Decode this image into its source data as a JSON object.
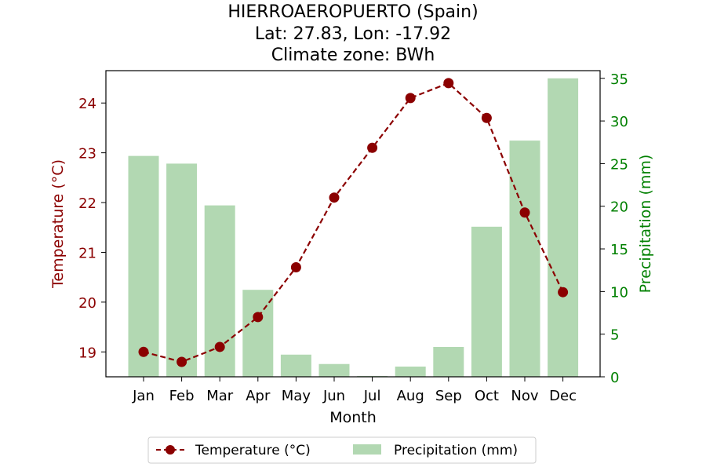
{
  "chart_data": {
    "type": "bar+line",
    "title_lines": [
      "HIERROAEROPUERTO (Spain)",
      "Lat: 27.83, Lon: -17.92",
      "Climate zone: BWh"
    ],
    "xlabel": "Month",
    "ylabel_left": "Temperature (°C)",
    "ylabel_right": "Precipitation (mm)",
    "categories": [
      "Jan",
      "Feb",
      "Mar",
      "Apr",
      "May",
      "Jun",
      "Jul",
      "Aug",
      "Sep",
      "Oct",
      "Nov",
      "Dec"
    ],
    "ylim_left": [
      18.5,
      24.65
    ],
    "ylim_right": [
      0,
      35.9
    ],
    "yticks_left": [
      19,
      20,
      21,
      22,
      23,
      24
    ],
    "yticks_right": [
      0,
      5,
      10,
      15,
      20,
      25,
      30,
      35
    ],
    "series": [
      {
        "name": "Temperature (°C)",
        "kind": "line",
        "axis": "left",
        "color": "#8b0000",
        "values": [
          19.0,
          18.8,
          19.1,
          19.7,
          20.7,
          22.1,
          23.1,
          24.1,
          24.4,
          23.7,
          21.8,
          20.2
        ]
      },
      {
        "name": "Precipitation (mm)",
        "kind": "bar",
        "axis": "right",
        "color": "#b2d8b2",
        "values": [
          25.9,
          25.0,
          20.1,
          10.2,
          2.6,
          1.5,
          0.1,
          1.2,
          3.5,
          17.6,
          27.7,
          35.0
        ]
      }
    ],
    "colors": {
      "left_axis": "#8b0000",
      "right_axis": "#008000"
    },
    "grid": false,
    "legend_position": "bottom-center"
  }
}
